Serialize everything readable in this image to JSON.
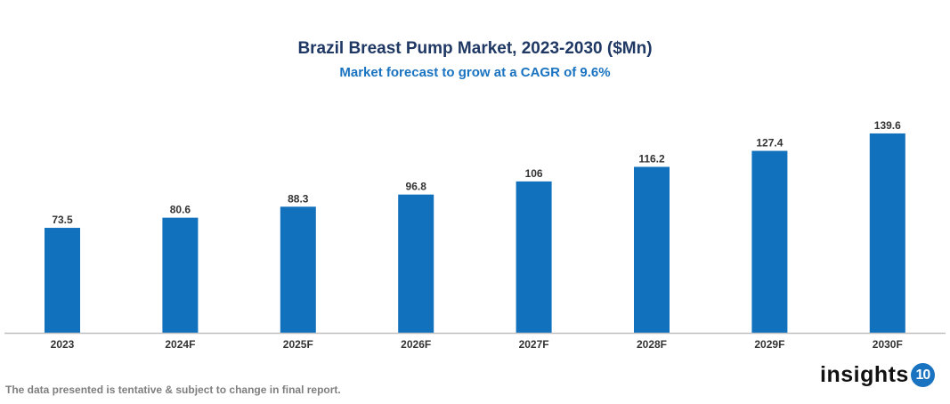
{
  "chart_data": {
    "type": "bar",
    "title": "Brazil Breast Pump Market, 2023-2030 ($Mn)",
    "subtitle": "Market forecast to grow at a CAGR of 9.6%",
    "categories": [
      "2023",
      "2024F",
      "2025F",
      "2026F",
      "2027F",
      "2028F",
      "2029F",
      "2030F"
    ],
    "values": [
      73.5,
      80.6,
      88.3,
      96.8,
      106,
      116.2,
      127.4,
      139.6
    ],
    "xlabel": "",
    "ylabel": "",
    "ylim": [
      0,
      140
    ],
    "grid": false,
    "bar_color": "#1271bd"
  },
  "footnote": "The data presented is tentative & subject to change in final report.",
  "logo": {
    "text": "insights",
    "badge": "10"
  }
}
